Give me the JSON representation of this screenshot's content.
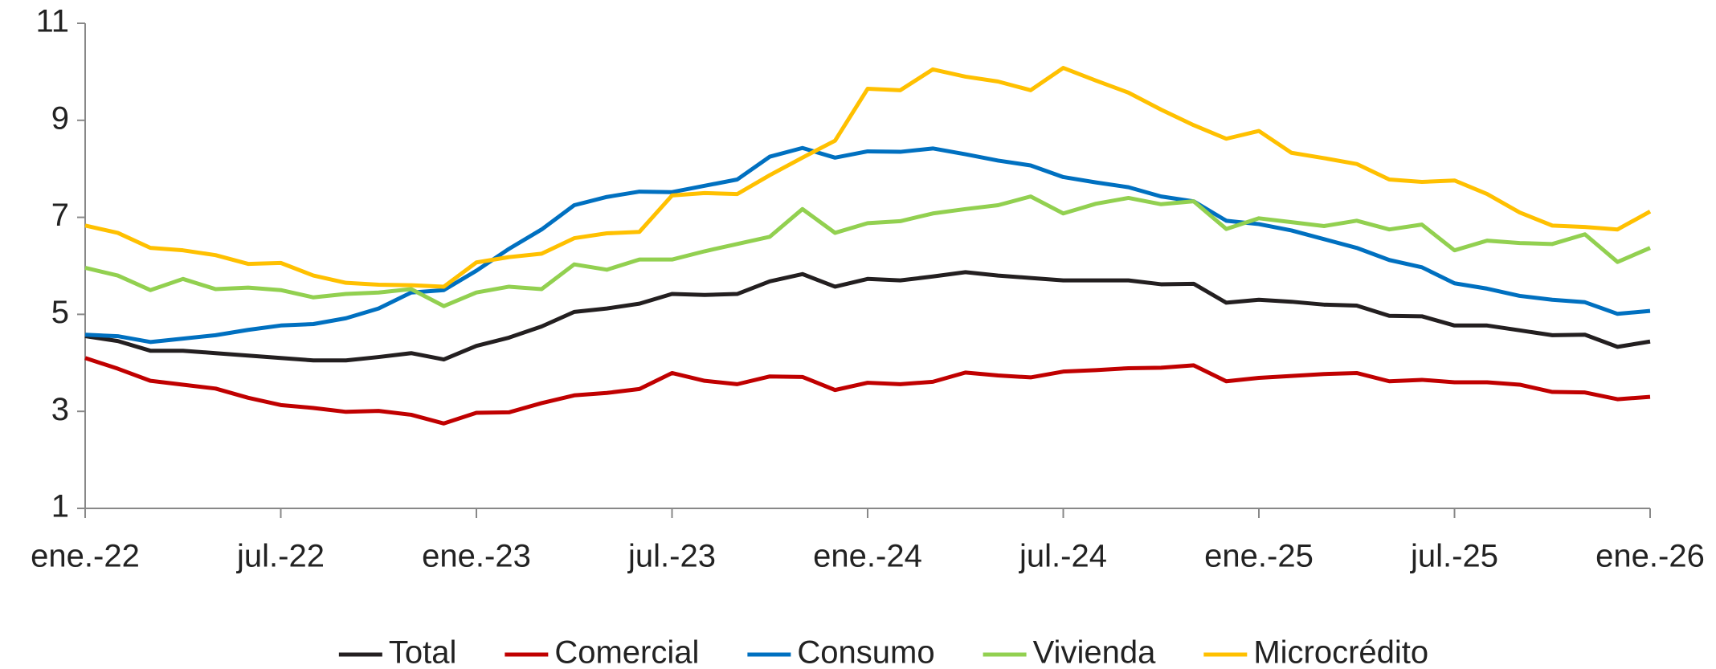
{
  "chart_data": {
    "type": "line",
    "categories": [
      "ene.-22",
      null,
      null,
      null,
      null,
      null,
      "jul.-22",
      null,
      null,
      null,
      null,
      null,
      "ene.-23",
      null,
      null,
      null,
      null,
      null,
      "jul.-23",
      null,
      null,
      null,
      null,
      null,
      "ene.-24",
      null,
      null,
      null,
      null,
      null,
      "jul.-24",
      null,
      null,
      null,
      null,
      null,
      "ene.-25",
      null,
      null,
      null,
      null,
      null,
      "jul.-25",
      null,
      null,
      null,
      null,
      null,
      "ene.-26"
    ],
    "series": [
      {
        "name": "Total",
        "color": "#231f20",
        "values": [
          4.55,
          4.45,
          4.25,
          4.25,
          4.2,
          4.15,
          4.1,
          4.05,
          4.05,
          4.12,
          4.2,
          4.07,
          4.35,
          4.52,
          4.75,
          5.05,
          5.12,
          5.22,
          5.42,
          5.4,
          5.42,
          5.68,
          5.83,
          5.57,
          5.73,
          5.7,
          5.78,
          5.87,
          5.8,
          5.75,
          5.7,
          5.7,
          5.7,
          5.62,
          5.63,
          5.24,
          5.3,
          5.26,
          5.2,
          5.18,
          4.97,
          4.96,
          4.77,
          4.77,
          4.67,
          4.57,
          4.58,
          4.33,
          4.44
        ]
      },
      {
        "name": "Comercial",
        "color": "#c00000",
        "values": [
          4.1,
          3.88,
          3.63,
          3.55,
          3.47,
          3.28,
          3.13,
          3.07,
          2.99,
          3.01,
          2.93,
          2.75,
          2.97,
          2.98,
          3.17,
          3.33,
          3.38,
          3.46,
          3.79,
          3.63,
          3.56,
          3.72,
          3.71,
          3.44,
          3.59,
          3.56,
          3.61,
          3.8,
          3.74,
          3.7,
          3.82,
          3.85,
          3.89,
          3.9,
          3.95,
          3.62,
          3.69,
          3.73,
          3.77,
          3.79,
          3.62,
          3.65,
          3.6,
          3.6,
          3.55,
          3.4,
          3.39,
          3.25,
          3.3
        ]
      },
      {
        "name": "Consumo",
        "color": "#0070c0",
        "values": [
          4.58,
          4.55,
          4.43,
          4.5,
          4.57,
          4.68,
          4.77,
          4.8,
          4.92,
          5.12,
          5.45,
          5.5,
          5.9,
          6.35,
          6.75,
          7.25,
          7.42,
          7.53,
          7.52,
          7.65,
          7.78,
          8.25,
          8.43,
          8.23,
          8.36,
          8.35,
          8.42,
          8.3,
          8.17,
          8.07,
          7.83,
          7.72,
          7.62,
          7.43,
          7.33,
          6.93,
          6.86,
          6.73,
          6.55,
          6.37,
          6.12,
          5.97,
          5.64,
          5.53,
          5.38,
          5.3,
          5.25,
          5.01,
          5.07
        ]
      },
      {
        "name": "Vivienda",
        "color": "#92d050",
        "values": [
          5.96,
          5.8,
          5.5,
          5.73,
          5.52,
          5.55,
          5.5,
          5.35,
          5.42,
          5.45,
          5.52,
          5.17,
          5.45,
          5.57,
          5.52,
          6.03,
          5.92,
          6.13,
          6.13,
          6.3,
          6.45,
          6.6,
          7.17,
          6.68,
          6.88,
          6.92,
          7.08,
          7.17,
          7.25,
          7.43,
          7.08,
          7.28,
          7.4,
          7.27,
          7.33,
          6.76,
          6.98,
          6.9,
          6.82,
          6.93,
          6.75,
          6.85,
          6.32,
          6.52,
          6.47,
          6.45,
          6.65,
          6.08,
          6.37
        ]
      },
      {
        "name": "Microcrédito",
        "color": "#ffc000",
        "values": [
          6.83,
          6.68,
          6.37,
          6.32,
          6.22,
          6.04,
          6.06,
          5.8,
          5.65,
          5.61,
          5.6,
          5.57,
          6.07,
          6.18,
          6.25,
          6.57,
          6.67,
          6.7,
          7.45,
          7.5,
          7.48,
          7.87,
          8.23,
          8.58,
          9.65,
          9.62,
          10.05,
          9.9,
          9.8,
          9.62,
          10.08,
          9.82,
          9.57,
          9.22,
          8.9,
          8.62,
          8.78,
          8.33,
          8.22,
          8.1,
          7.78,
          7.73,
          7.76,
          7.48,
          7.1,
          6.83,
          6.8,
          6.75,
          7.12
        ]
      }
    ],
    "ylim": [
      1,
      11
    ],
    "yticks": [
      1,
      3,
      5,
      7,
      9,
      11
    ],
    "grid": false,
    "legend": "bottom"
  }
}
